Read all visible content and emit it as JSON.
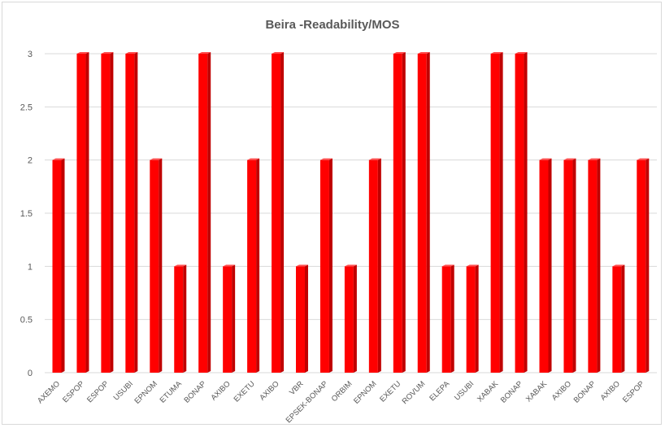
{
  "chart_data": {
    "type": "bar",
    "title": "Beira -Readability/MOS",
    "xlabel": "",
    "ylabel": "",
    "ylim": [
      0,
      3
    ],
    "yticks": [
      "0",
      "0.5",
      "1",
      "1.5",
      "2",
      "2.5",
      "3"
    ],
    "grid": true,
    "legend": "none",
    "bar_color": "#ff0000",
    "bar_side_color": "#c00000",
    "categories": [
      "AXEMO",
      "ESPOP",
      "ESPOP",
      "USUBI",
      "EPNOM",
      "ETUMA",
      "BONAP",
      "AXIBO",
      "EXETU",
      "AXIBO",
      "VBR",
      "EPSEK-BONAP",
      "ORBIM",
      "EPNOM",
      "EXETU",
      "ROVUM",
      "ELEPA",
      "USUBI",
      "XABAK",
      "BONAP",
      "XABAK",
      "AXIBO",
      "BONAP",
      "AXIBO",
      "ESPOP"
    ],
    "values": [
      2,
      3,
      3,
      3,
      2,
      1,
      3,
      1,
      2,
      3,
      1,
      2,
      1,
      2,
      3,
      3,
      1,
      1,
      3,
      3,
      2,
      2,
      2,
      1,
      2
    ]
  }
}
